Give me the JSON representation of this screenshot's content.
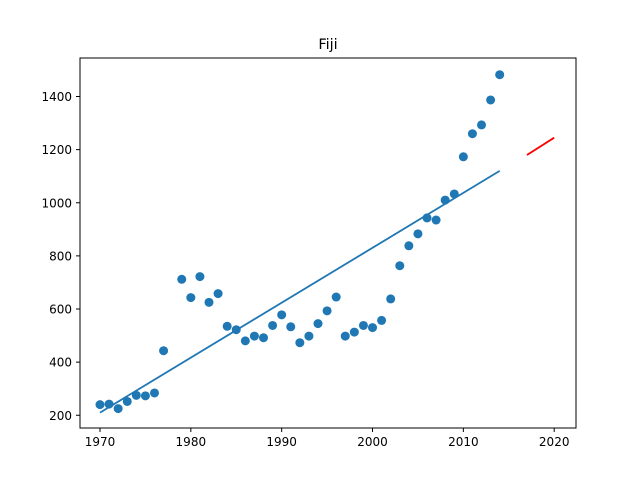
{
  "chart_data": {
    "type": "scatter",
    "title": "Fiji",
    "xlabel": "",
    "ylabel": "",
    "xlim": [
      1967.8,
      2022.4
    ],
    "ylim": [
      152,
      1545
    ],
    "x_ticks": [
      1970,
      1980,
      1990,
      2000,
      2010,
      2020
    ],
    "y_ticks": [
      200,
      400,
      600,
      800,
      1000,
      1200,
      1400
    ],
    "grid": false,
    "colors": {
      "points": "#1f77b4",
      "fit_line": "#1f77b4",
      "forecast_line": "#ff0000"
    },
    "series": [
      {
        "kind": "scatter",
        "x": [
          1970,
          1971,
          1972,
          1973,
          1974,
          1975,
          1976,
          1977,
          1979,
          1980,
          1981,
          1982,
          1983,
          1984,
          1985,
          1986,
          1987,
          1988,
          1989,
          1990,
          1991,
          1992,
          1993,
          1994,
          1995,
          1996,
          1997,
          1998,
          1999,
          2000,
          2001,
          2002,
          2003,
          2004,
          2005,
          2006,
          2007,
          2008,
          2009,
          2010,
          2011,
          2012,
          2013,
          2014
        ],
        "y": [
          240,
          242,
          225,
          252,
          275,
          273,
          284,
          443,
          712,
          643,
          722,
          625,
          658,
          535,
          522,
          480,
          498,
          492,
          538,
          578,
          533,
          473,
          498,
          545,
          593,
          645,
          498,
          513,
          538,
          530,
          557,
          638,
          763,
          838,
          883,
          943,
          935,
          1010,
          1033,
          1173,
          1260,
          1293,
          1387,
          1482
        ]
      },
      {
        "kind": "line",
        "x": [
          1970,
          2014
        ],
        "y": [
          210,
          1120
        ]
      },
      {
        "kind": "line",
        "x": [
          2017,
          2020
        ],
        "y": [
          1180,
          1245
        ]
      }
    ]
  }
}
